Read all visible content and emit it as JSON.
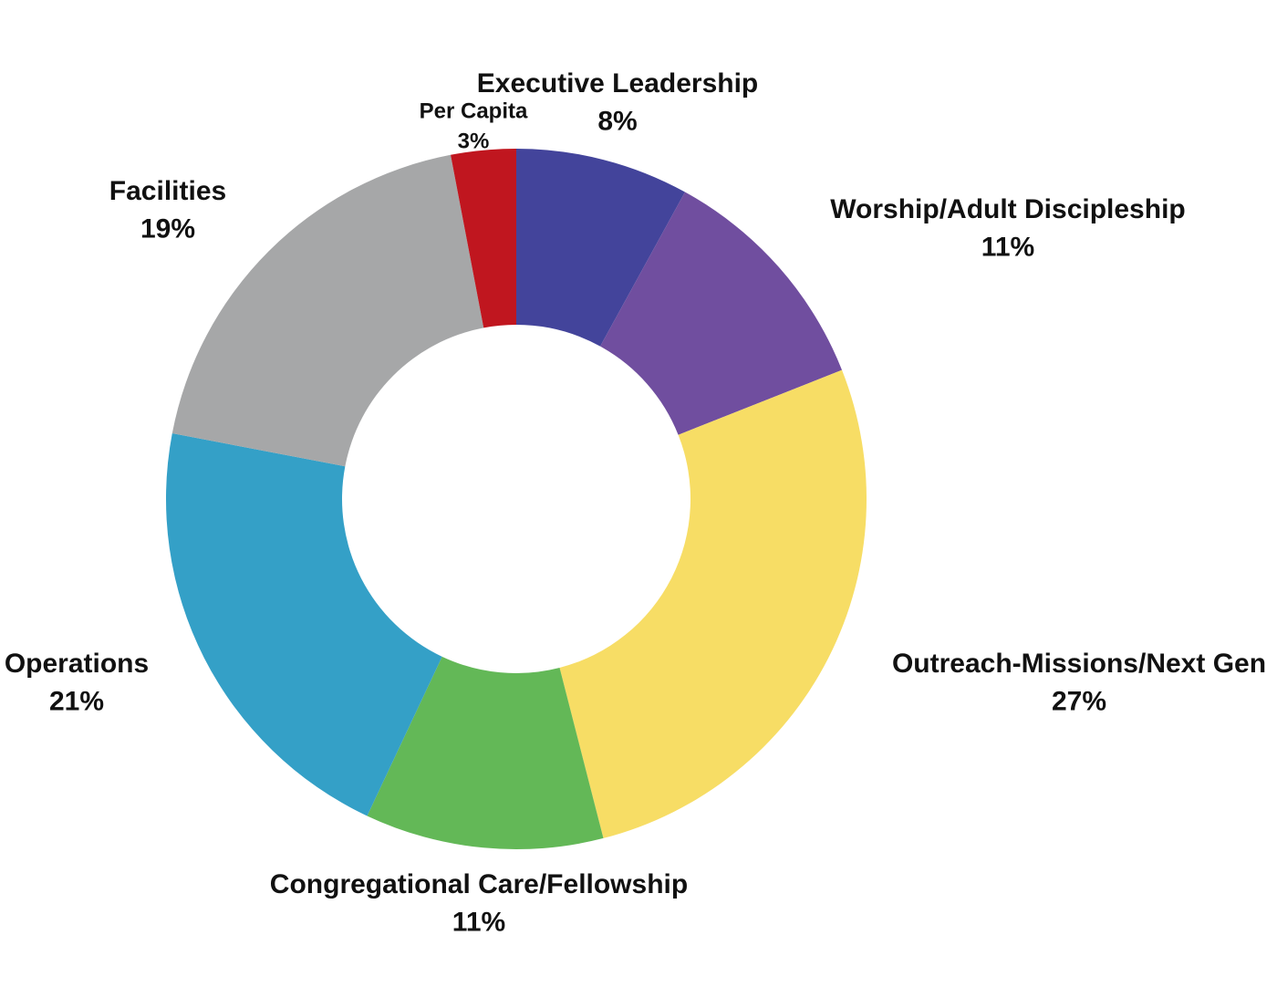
{
  "chart_data": {
    "type": "pie",
    "variant": "donut",
    "title": "",
    "categories": [
      "Executive Leadership",
      "Worship/Adult Discipleship",
      "Outreach-Missions/Next Gen",
      "Congregational Care/Fellowship",
      "Operations",
      "Facilities",
      "Per Capita"
    ],
    "values": [
      8,
      11,
      27,
      11,
      21,
      19,
      3
    ],
    "value_labels": [
      "8%",
      "11%",
      "27%",
      "11%",
      "21%",
      "19%",
      "3%"
    ],
    "colors": [
      "#43449b",
      "#704e9f",
      "#f7dd65",
      "#63b857",
      "#34a0c7",
      "#a6a7a8",
      "#c0161f"
    ],
    "legend": "none",
    "labels_position": "outside"
  }
}
